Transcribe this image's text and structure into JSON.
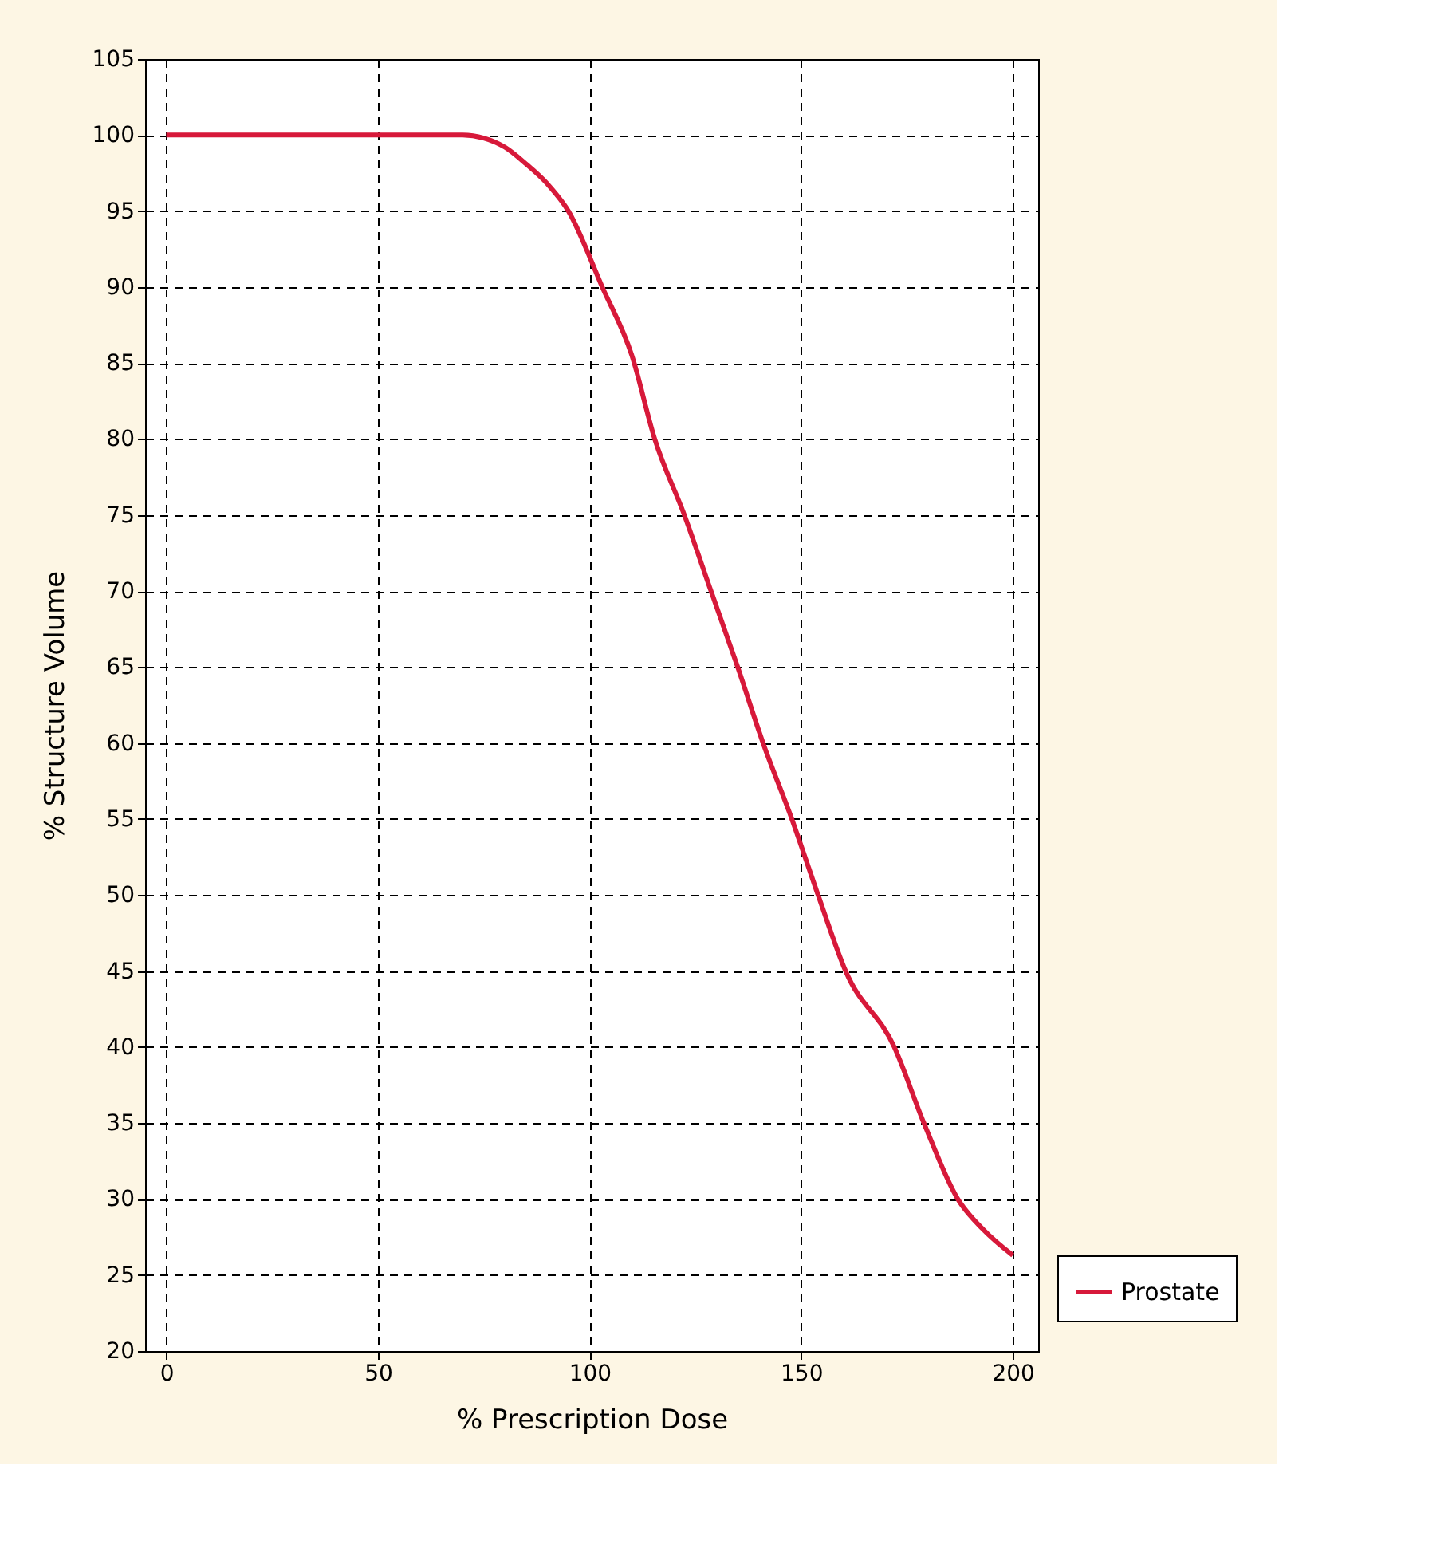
{
  "chart_data": {
    "type": "line",
    "xlabel": "% Prescription Dose",
    "ylabel": "% Structure Volume",
    "xlim": [
      -5,
      206
    ],
    "xticks": [
      0,
      50,
      100,
      150,
      200
    ],
    "ylim": [
      20,
      105
    ],
    "yticks": [
      20,
      25,
      30,
      35,
      40,
      45,
      50,
      55,
      60,
      65,
      70,
      75,
      80,
      85,
      90,
      95,
      100,
      105
    ],
    "grid": true,
    "legend": "bottom right",
    "line_style": "solid",
    "marker": "none",
    "series": [
      {
        "name": "Prostate",
        "color": "#d7193a",
        "x": [
          0,
          30,
          60,
          70,
          75,
          80,
          85,
          90,
          95,
          103,
          110,
          115.4,
          122.4,
          128.7,
          135,
          141,
          147.8,
          154,
          160.5,
          172,
          179,
          187,
          193,
          200
        ],
        "values": [
          100,
          100,
          100,
          100,
          99.8,
          99.2,
          98.1,
          96.8,
          95,
          90,
          85.5,
          80,
          75,
          70,
          65,
          60,
          55,
          50,
          45,
          40,
          35,
          30,
          28,
          26.3
        ]
      }
    ]
  }
}
